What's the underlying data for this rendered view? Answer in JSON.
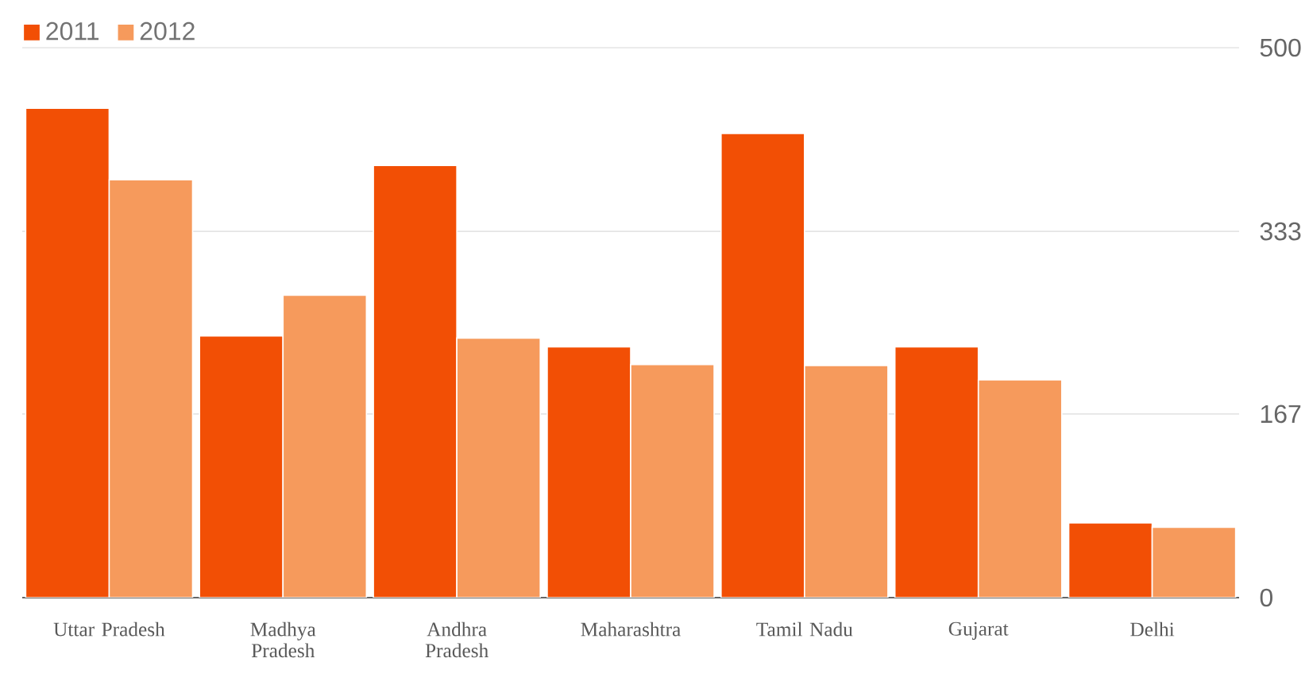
{
  "chart_data": {
    "type": "bar",
    "categories": [
      "Uttar Pradesh",
      "Madhya Pradesh",
      "Andhra Pradesh",
      "Maharashtra",
      "Tamil Nadu",
      "Gujarat",
      "Delhi"
    ],
    "series": [
      {
        "name": "2011",
        "color": "#f24f05",
        "values": [
          445,
          238,
          393,
          228,
          422,
          228,
          68
        ]
      },
      {
        "name": "2012",
        "color": "#f69a5c",
        "values": [
          380,
          275,
          236,
          212,
          211,
          198,
          64
        ]
      }
    ],
    "ylim": [
      0,
      500
    ],
    "yticks": [
      0,
      167,
      333,
      500
    ],
    "grid": "y",
    "legend": "top left"
  }
}
